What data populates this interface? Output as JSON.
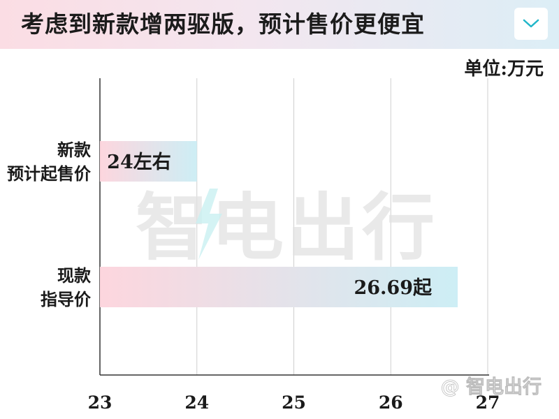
{
  "header": {
    "title": "考虑到新款增两驱版，预计售价更便宜",
    "dropdown_icon": "chevron-down-icon",
    "accent_color": "#21b6c9"
  },
  "unit_label": "单位:万元",
  "watermark": {
    "center_text": "智电出行",
    "corner_text": "@ 智电出行"
  },
  "chart_data": {
    "type": "bar",
    "orientation": "horizontal",
    "categories": [
      {
        "lines": [
          "新款",
          "预计起售价"
        ]
      },
      {
        "lines": [
          "现款",
          "指导价"
        ]
      }
    ],
    "values": [
      24.0,
      26.69
    ],
    "data_labels": [
      "24左右",
      "26.69起"
    ],
    "xlim": [
      23,
      27
    ],
    "ticks": [
      23,
      24,
      25,
      26,
      27
    ],
    "tick_labels": [
      "23",
      "24",
      "25",
      "26",
      "27"
    ],
    "grid": true,
    "colors": {
      "bar_start": "#fdd6de",
      "bar_end": "#cdeef5"
    }
  }
}
